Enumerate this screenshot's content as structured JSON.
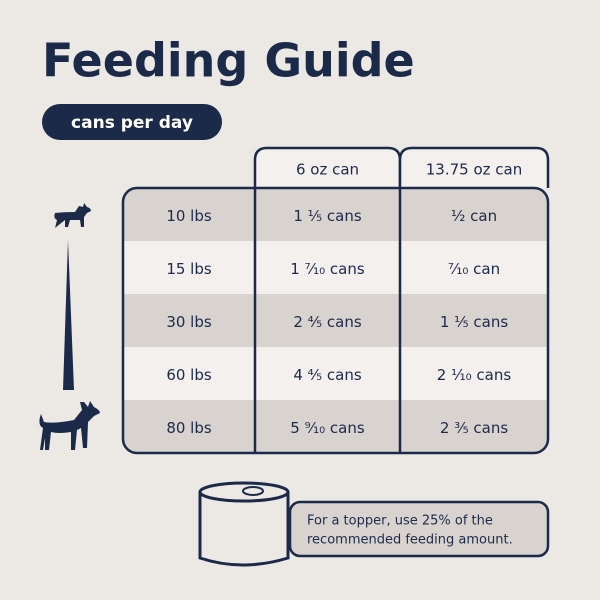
{
  "header": {
    "title": "Feeding Guide",
    "badge": "cans per day"
  },
  "table": {
    "columns": [
      "6 oz can",
      "13.75 oz can"
    ],
    "rows": [
      [
        "10 lbs",
        "1 ¹⁄₅ cans",
        "¹⁄₂ can"
      ],
      [
        "15 lbs",
        "1 ⁷⁄₁₀ cans",
        "⁷⁄₁₀ can"
      ],
      [
        "30 lbs",
        "2 ⁴⁄₅ cans",
        "1 ¹⁄₅ cans"
      ],
      [
        "60 lbs",
        "4 ⁴⁄₅ cans",
        "2 ¹⁄₁₀ cans"
      ],
      [
        "80 lbs",
        "5 ⁹⁄₁₀ cans",
        "2 ³⁄₅ cans"
      ]
    ]
  },
  "note": {
    "lines": [
      "For a topper, use 25% of the",
      "recommended feeding amount."
    ]
  }
}
